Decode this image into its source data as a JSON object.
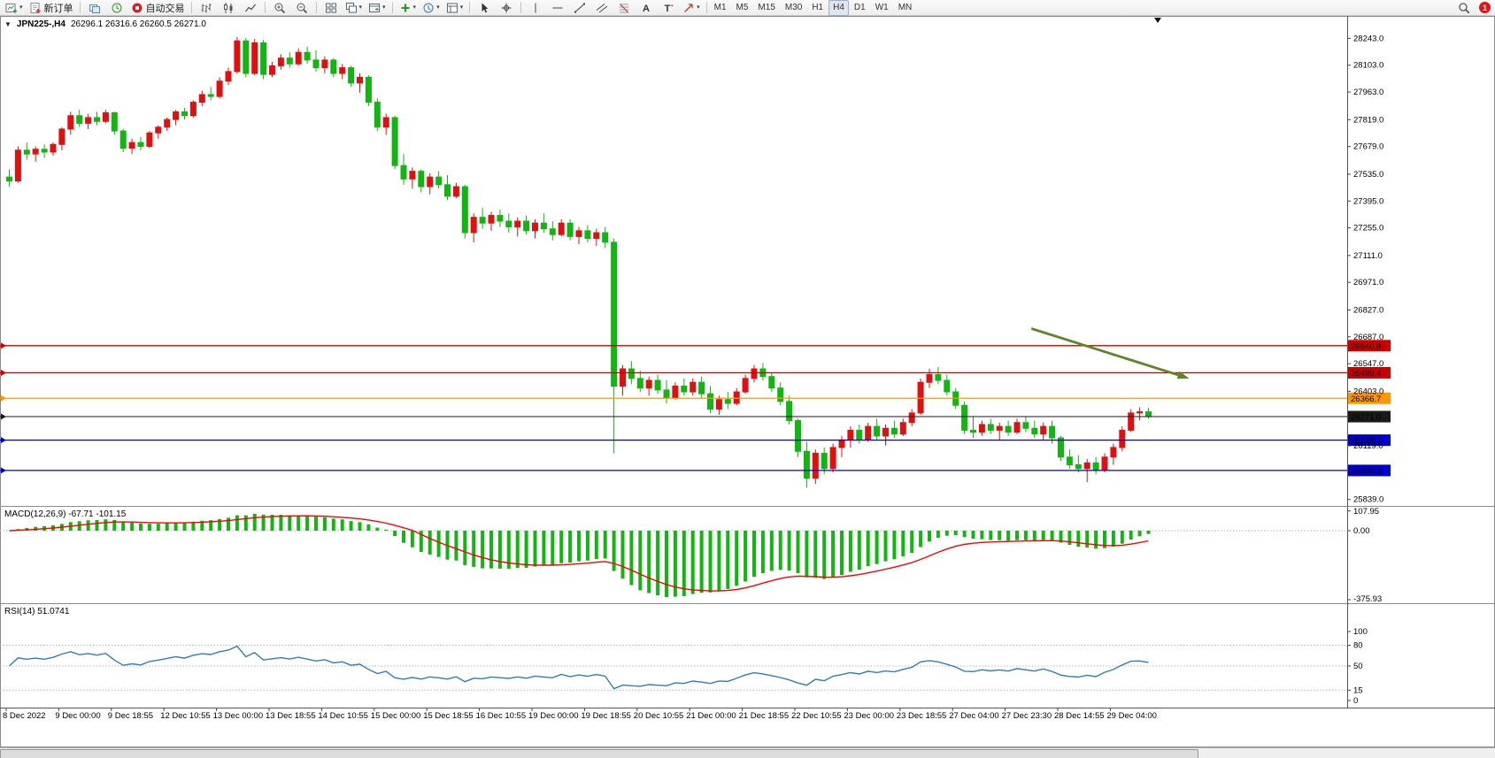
{
  "toolbar": {
    "new_order_label": "新订单",
    "auto_trading_label": "自动交易",
    "timeframes": [
      "M1",
      "M5",
      "M15",
      "M30",
      "H1",
      "H4",
      "D1",
      "W1",
      "MN"
    ],
    "active_timeframe": "H4",
    "notification_count": "1",
    "items": [
      {
        "icon": "new-chart",
        "name": "new-chart-button",
        "caret": true
      },
      {
        "icon": "new-order",
        "name": "new-order-button",
        "label": "新订单"
      },
      {
        "sep": true
      },
      {
        "icon": "profiles",
        "name": "profiles-button"
      },
      {
        "icon": "market-watch",
        "name": "market-watch-button"
      },
      {
        "icon": "auto-trading",
        "name": "auto-trading-button",
        "label": "自动交易"
      },
      {
        "sep": true
      },
      {
        "icon": "bar-chart",
        "name": "bar-chart-button"
      },
      {
        "icon": "candle-chart",
        "name": "candlestick-chart-button"
      },
      {
        "icon": "line-chart",
        "name": "line-chart-button"
      },
      {
        "sep": true
      },
      {
        "icon": "zoom-in",
        "name": "zoom-in-button"
      },
      {
        "icon": "zoom-out",
        "name": "zoom-out-button"
      },
      {
        "sep": true
      },
      {
        "icon": "tile-windows",
        "name": "tile-windows-button"
      },
      {
        "icon": "cascade",
        "name": "cascade-windows-button",
        "caret": true
      },
      {
        "icon": "chart-shift",
        "name": "chart-layout-button",
        "caret": true
      },
      {
        "sep": true
      },
      {
        "icon": "add-indicator",
        "name": "add-indicator-button",
        "caret": true
      },
      {
        "icon": "history",
        "name": "history-center-button",
        "caret": true
      },
      {
        "icon": "templates",
        "name": "templates-button",
        "caret": true
      },
      {
        "sep": true
      },
      {
        "icon": "cursor",
        "name": "cursor-button"
      },
      {
        "icon": "crosshair",
        "name": "crosshair-button"
      },
      {
        "sep": true
      },
      {
        "icon": "vline",
        "name": "vertical-line-button"
      },
      {
        "icon": "hline",
        "name": "horizontal-line-button"
      },
      {
        "icon": "trendline",
        "name": "trendline-button"
      },
      {
        "icon": "channel",
        "name": "equidistant-channel-button"
      },
      {
        "icon": "fibonacci",
        "name": "fibonacci-button"
      },
      {
        "icon": "text",
        "name": "text-button"
      },
      {
        "icon": "text-label",
        "name": "text-label-button"
      },
      {
        "icon": "arrows",
        "name": "arrows-button",
        "caret": true
      },
      {
        "sep": true
      }
    ]
  },
  "chart": {
    "collapse_glyph": "▼",
    "symbol_period": "JPN225-,H4",
    "ohlc": "26296.1 26316.6 26260.5 26271.0"
  },
  "main_pane": {
    "y_axis": [
      "28243.0",
      "28103.0",
      "27963.0",
      "27819.0",
      "27679.0",
      "27535.0",
      "27395.0",
      "27255.0",
      "27111.0",
      "26971.0",
      "26827.0",
      "26687.0",
      "26547.0",
      "26403.0",
      "26119.0",
      "25839.0"
    ],
    "levels": [
      {
        "price": 26640.8,
        "label": "26640.8",
        "color": "#cc0000",
        "text": "#ffffff",
        "current": false
      },
      {
        "price": 26499.4,
        "label": "26499.4",
        "color": "#cc0000",
        "text": "#ffffff",
        "current": false
      },
      {
        "price": 26366.7,
        "label": "26366.7",
        "color": "#ff9800",
        "text": "#000000",
        "current": false
      },
      {
        "price": 26271.0,
        "label": "26271.0",
        "color": "#1a1a1a",
        "text": "#ffffff",
        "current": true
      },
      {
        "price": 26148.2,
        "label": "26148.2",
        "color": "#0000cc",
        "text": "#ffffff",
        "current": false
      },
      {
        "price": 25990.3,
        "label": "25990.3",
        "color": "#0000cc",
        "text": "#ffffff",
        "current": false
      }
    ]
  },
  "chart_data": {
    "type": "candlestick",
    "symbol": "JPN225-",
    "timeframe": "H4",
    "ylim": [
      25810,
      28360
    ],
    "up_color": "#e01010",
    "down_color": "#12b512",
    "candles_per_label": 6,
    "x_labels": [
      "8 Dec 2022",
      "9 Dec 00:00",
      "9 Dec 18:55",
      "12 Dec 10:55",
      "13 Dec 00:00",
      "13 Dec 18:55",
      "14 Dec 10:55",
      "15 Dec 00:00",
      "15 Dec 18:55",
      "16 Dec 10:55",
      "19 Dec 00:00",
      "19 Dec 18:55",
      "20 Dec 10:55",
      "21 Dec 00:00",
      "21 Dec 18:55",
      "22 Dec 10:55",
      "23 Dec 00:00",
      "23 Dec 18:55",
      "27 Dec 04:00",
      "27 Dec 23:30",
      "28 Dec 14:55",
      "29 Dec 04:00"
    ],
    "candles": [
      [
        27520,
        27560,
        27470,
        27500
      ],
      [
        27500,
        27680,
        27490,
        27660
      ],
      [
        27660,
        27700,
        27610,
        27640
      ],
      [
        27640,
        27680,
        27600,
        27665
      ],
      [
        27665,
        27690,
        27620,
        27650
      ],
      [
        27650,
        27700,
        27630,
        27690
      ],
      [
        27690,
        27780,
        27660,
        27770
      ],
      [
        27770,
        27860,
        27740,
        27840
      ],
      [
        27840,
        27870,
        27780,
        27800
      ],
      [
        27800,
        27850,
        27770,
        27830
      ],
      [
        27830,
        27860,
        27790,
        27810
      ],
      [
        27810,
        27870,
        27800,
        27855
      ],
      [
        27855,
        27860,
        27740,
        27760
      ],
      [
        27760,
        27770,
        27650,
        27670
      ],
      [
        27670,
        27720,
        27640,
        27700
      ],
      [
        27700,
        27730,
        27660,
        27680
      ],
      [
        27680,
        27760,
        27670,
        27750
      ],
      [
        27750,
        27790,
        27720,
        27780
      ],
      [
        27780,
        27830,
        27760,
        27820
      ],
      [
        27820,
        27870,
        27790,
        27860
      ],
      [
        27860,
        27880,
        27820,
        27840
      ],
      [
        27840,
        27920,
        27830,
        27910
      ],
      [
        27910,
        27970,
        27890,
        27950
      ],
      [
        27950,
        27990,
        27920,
        27940
      ],
      [
        27940,
        28040,
        27930,
        28020
      ],
      [
        28020,
        28090,
        28000,
        28070
      ],
      [
        28070,
        28250,
        28060,
        28230
      ],
      [
        28230,
        28245,
        28040,
        28060
      ],
      [
        28060,
        28240,
        28050,
        28220
      ],
      [
        28220,
        28235,
        28030,
        28055
      ],
      [
        28055,
        28120,
        28040,
        28100
      ],
      [
        28100,
        28160,
        28080,
        28140
      ],
      [
        28140,
        28170,
        28090,
        28110
      ],
      [
        28110,
        28190,
        28100,
        28170
      ],
      [
        28170,
        28200,
        28110,
        28130
      ],
      [
        28130,
        28180,
        28070,
        28090
      ],
      [
        28090,
        28150,
        28060,
        28130
      ],
      [
        28130,
        28140,
        28040,
        28060
      ],
      [
        28060,
        28110,
        28030,
        28090
      ],
      [
        28090,
        28100,
        27990,
        28010
      ],
      [
        28010,
        28060,
        27960,
        28040
      ],
      [
        28040,
        28050,
        27890,
        27910
      ],
      [
        27910,
        27930,
        27760,
        27780
      ],
      [
        27780,
        27850,
        27740,
        27830
      ],
      [
        27830,
        27840,
        27560,
        27580
      ],
      [
        27580,
        27640,
        27480,
        27510
      ],
      [
        27510,
        27570,
        27460,
        27550
      ],
      [
        27550,
        27560,
        27440,
        27470
      ],
      [
        27470,
        27540,
        27430,
        27520
      ],
      [
        27520,
        27550,
        27460,
        27480
      ],
      [
        27480,
        27530,
        27400,
        27420
      ],
      [
        27420,
        27490,
        27410,
        27470
      ],
      [
        27470,
        27480,
        27200,
        27230
      ],
      [
        27230,
        27330,
        27180,
        27310
      ],
      [
        27310,
        27360,
        27250,
        27280
      ],
      [
        27280,
        27340,
        27240,
        27320
      ],
      [
        27320,
        27350,
        27260,
        27290
      ],
      [
        27290,
        27330,
        27230,
        27260
      ],
      [
        27260,
        27310,
        27210,
        27290
      ],
      [
        27290,
        27320,
        27220,
        27240
      ],
      [
        27240,
        27300,
        27200,
        27280
      ],
      [
        27280,
        27330,
        27230,
        27250
      ],
      [
        27250,
        27290,
        27190,
        27220
      ],
      [
        27220,
        27300,
        27210,
        27280
      ],
      [
        27280,
        27300,
        27190,
        27210
      ],
      [
        27210,
        27260,
        27170,
        27240
      ],
      [
        27240,
        27270,
        27180,
        27200
      ],
      [
        27200,
        27250,
        27160,
        27230
      ],
      [
        27230,
        27260,
        27150,
        27180
      ],
      [
        27180,
        27200,
        26080,
        26430
      ],
      [
        26430,
        26540,
        26380,
        26520
      ],
      [
        26520,
        26560,
        26440,
        26470
      ],
      [
        26470,
        26510,
        26400,
        26420
      ],
      [
        26420,
        26480,
        26380,
        26460
      ],
      [
        26460,
        26490,
        26390,
        26410
      ],
      [
        26410,
        26460,
        26340,
        26370
      ],
      [
        26370,
        26450,
        26360,
        26430
      ],
      [
        26430,
        26470,
        26380,
        26400
      ],
      [
        26400,
        26470,
        26380,
        26450
      ],
      [
        26450,
        26480,
        26370,
        26390
      ],
      [
        26390,
        26430,
        26290,
        26310
      ],
      [
        26310,
        26380,
        26280,
        26360
      ],
      [
        26360,
        26400,
        26310,
        26340
      ],
      [
        26340,
        26420,
        26330,
        26400
      ],
      [
        26400,
        26490,
        26390,
        26470
      ],
      [
        26470,
        26540,
        26450,
        26520
      ],
      [
        26520,
        26550,
        26460,
        26480
      ],
      [
        26480,
        26500,
        26400,
        26420
      ],
      [
        26420,
        26450,
        26330,
        26350
      ],
      [
        26350,
        26380,
        26230,
        26250
      ],
      [
        26250,
        26260,
        26060,
        26090
      ],
      [
        26090,
        26140,
        25900,
        25950
      ],
      [
        25950,
        26100,
        25920,
        26080
      ],
      [
        26080,
        26110,
        25970,
        26000
      ],
      [
        26000,
        26130,
        25980,
        26110
      ],
      [
        26110,
        26170,
        26060,
        26150
      ],
      [
        26150,
        26220,
        26110,
        26200
      ],
      [
        26200,
        26230,
        26130,
        26150
      ],
      [
        26150,
        26240,
        26140,
        26220
      ],
      [
        26220,
        26260,
        26150,
        26170
      ],
      [
        26170,
        26230,
        26120,
        26210
      ],
      [
        26210,
        26250,
        26160,
        26180
      ],
      [
        26180,
        26260,
        26170,
        26240
      ],
      [
        26240,
        26310,
        26220,
        26290
      ],
      [
        26290,
        26470,
        26280,
        26450
      ],
      [
        26450,
        26520,
        26420,
        26490
      ],
      [
        26490,
        26530,
        26440,
        26460
      ],
      [
        26460,
        26490,
        26380,
        26400
      ],
      [
        26400,
        26420,
        26310,
        26330
      ],
      [
        26330,
        26350,
        26180,
        26200
      ],
      [
        26200,
        26270,
        26160,
        26190
      ],
      [
        26190,
        26250,
        26170,
        26230
      ],
      [
        26230,
        26260,
        26180,
        26200
      ],
      [
        26200,
        26240,
        26150,
        26220
      ],
      [
        26220,
        26250,
        26170,
        26190
      ],
      [
        26190,
        26260,
        26180,
        26240
      ],
      [
        26240,
        26270,
        26190,
        26210
      ],
      [
        26210,
        26250,
        26160,
        26180
      ],
      [
        26180,
        26240,
        26150,
        26220
      ],
      [
        26220,
        26250,
        26130,
        26160
      ],
      [
        26160,
        26170,
        26040,
        26060
      ],
      [
        26060,
        26100,
        26000,
        26020
      ],
      [
        26020,
        26070,
        25980,
        26000
      ],
      [
        26000,
        26050,
        25930,
        26030
      ],
      [
        26030,
        26060,
        25970,
        25990
      ],
      [
        25990,
        26080,
        25980,
        26060
      ],
      [
        26060,
        26130,
        26020,
        26110
      ],
      [
        26110,
        26220,
        26090,
        26200
      ],
      [
        26200,
        26310,
        26190,
        26290
      ],
      [
        26290,
        26320,
        26250,
        26296
      ],
      [
        26296.1,
        26316.6,
        26260.5,
        26271.0
      ]
    ],
    "indicators": [
      {
        "type": "MACD",
        "params": [
          12,
          26,
          9
        ],
        "display": "MACD(12,26,9) -67.71 -101.15",
        "scale": [
          "107.95",
          "0.00",
          "-375.93"
        ],
        "histogram_color": "#12b512",
        "signal_color": "#ff0000"
      },
      {
        "type": "RSI",
        "params": [
          14
        ],
        "display": "RSI(14) 51.0741",
        "scale": [
          "100",
          "80",
          "50",
          "15",
          "0"
        ],
        "levels": [
          80,
          50,
          15
        ],
        "color": "#2f7cc0"
      }
    ],
    "objects": [
      {
        "type": "arrow",
        "from": [
          117,
          26730
        ],
        "to": [
          135,
          26470
        ],
        "color": "#5c8727"
      }
    ]
  }
}
